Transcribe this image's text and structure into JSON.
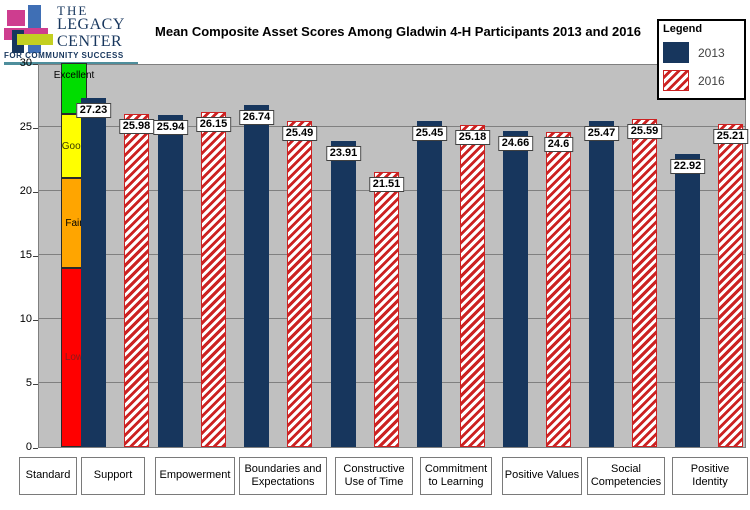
{
  "header": {
    "logo": {
      "line1": "THE",
      "line2": "LEGACY",
      "line3": "CENTER",
      "tagline": "FOR COMMUNITY SUCCESS"
    }
  },
  "legend": {
    "title": "Legend"
  },
  "chart_data": {
    "type": "bar",
    "title": "Mean Composite Asset Scores Among Gladwin 4-H Participants 2013 and 2016",
    "categories": [
      "Support",
      "Empowerment",
      "Boundaries and Expectations",
      "Constructive Use of Time",
      "Commitment to Learning",
      "Positive Values",
      "Social Competencies",
      "Positive Identity"
    ],
    "series": [
      {
        "name": "2013",
        "pattern": "solid",
        "color": "#17365d",
        "values": [
          27.23,
          25.94,
          26.74,
          23.91,
          25.45,
          24.66,
          25.47,
          22.92
        ],
        "labels": [
          "27.23",
          "25.94",
          "26.74",
          "23.91",
          "25.45",
          "24.66",
          "25.47",
          "22.92"
        ]
      },
      {
        "name": "2016",
        "pattern": "diagonal-hatch",
        "color": "#cc2222",
        "fill": "#ffffff",
        "values": [
          25.98,
          26.15,
          25.49,
          21.51,
          25.18,
          24.6,
          25.59,
          25.21
        ],
        "labels": [
          "25.98",
          "26.15",
          "25.49",
          "21.51",
          "25.18",
          "24.6",
          "25.59",
          "25.21"
        ]
      }
    ],
    "standard_scale": {
      "label": "Standard",
      "segments": [
        {
          "label": "Low",
          "from": 0,
          "to": 14,
          "color": "#ff0000",
          "text_color": "#8b1a1a"
        },
        {
          "label": "Fair",
          "from": 14,
          "to": 21,
          "color": "#ffa500",
          "text_color": "#000000"
        },
        {
          "label": "Good",
          "from": 21,
          "to": 26,
          "color": "#ffff00",
          "text_color": "#3a3a00"
        },
        {
          "label": "Excellent",
          "from": 26,
          "to": 30,
          "color": "#00dd00",
          "text_color": "#000000"
        }
      ]
    },
    "ylim": [
      0,
      30
    ],
    "yticks": [
      0,
      5,
      10,
      15,
      20,
      25,
      30
    ],
    "grid": true,
    "legend_position": "top-right",
    "plot_bg": "#c0c0c0"
  }
}
